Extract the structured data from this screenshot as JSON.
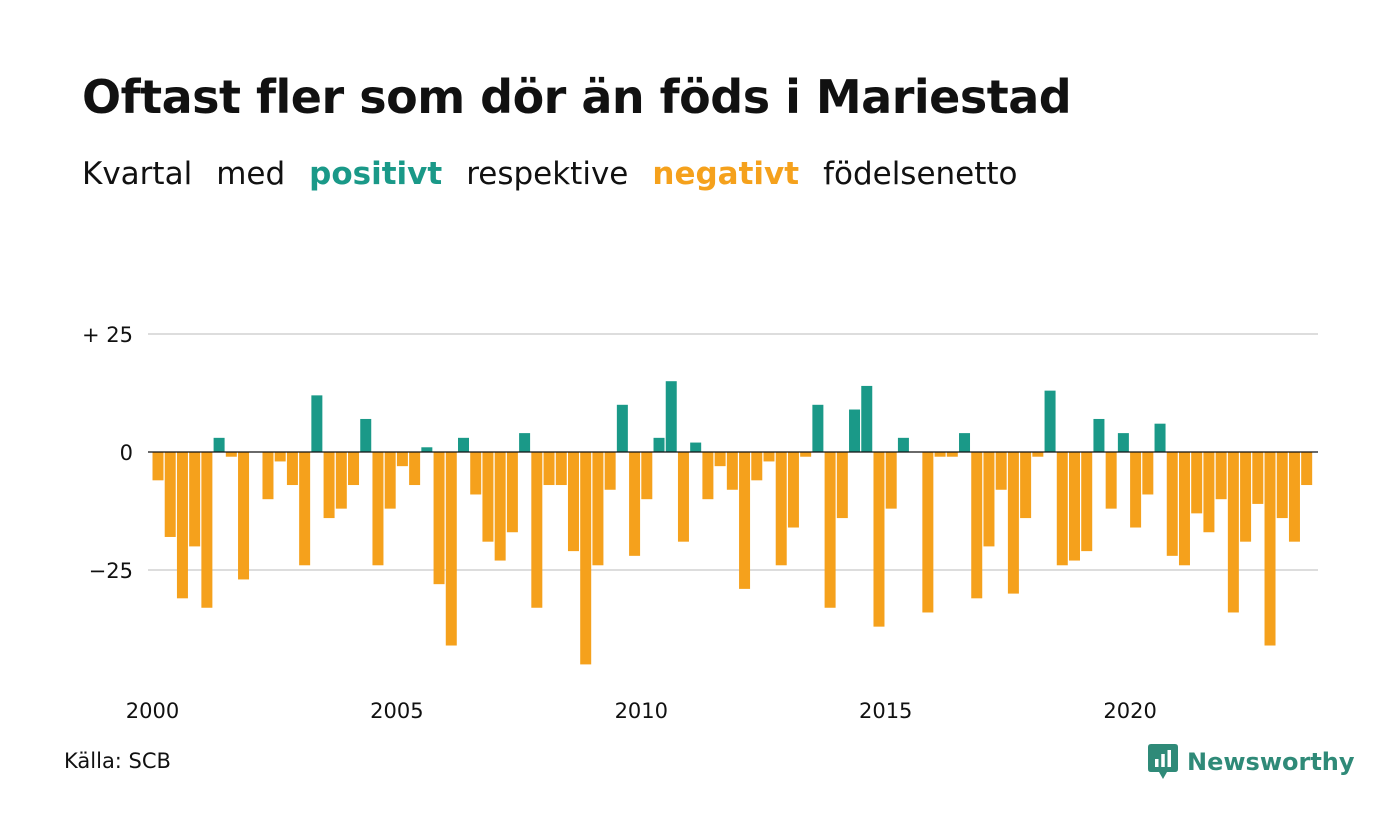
{
  "title": "Oftast fler som dör än föds i Mariestad",
  "subtitle": {
    "prefix": "Kvartal",
    "word2": "med",
    "positive": "positivt",
    "middle": "respektive",
    "negative": "negativt",
    "suffix": "födelsenetto"
  },
  "source": "Källa: SCB",
  "brand": "Newsworthy",
  "colors": {
    "positive": "#1a9988",
    "negative": "#f5a11c",
    "grid": "#dddddd",
    "zero_line": "#111111",
    "logo": "#2f8a78"
  },
  "chart_data": {
    "type": "bar",
    "title": "Oftast fler som dör än föds i Mariestad",
    "subtitle": "Kvartal med positivt respektive negativt födelsenetto",
    "xlabel": "",
    "ylabel": "",
    "ylim": [
      -45,
      30
    ],
    "y_ticks": [
      {
        "value": 25,
        "label": "+ 25"
      },
      {
        "value": 0,
        "label": "0"
      },
      {
        "value": -25,
        "label": "−25"
      }
    ],
    "x_ticks": [
      {
        "value": 2000,
        "label": "2000"
      },
      {
        "value": 2005,
        "label": "2005"
      },
      {
        "value": 2010,
        "label": "2010"
      },
      {
        "value": 2015,
        "label": "2015"
      },
      {
        "value": 2020,
        "label": "2020"
      }
    ],
    "grid": true,
    "start_year": 2000,
    "start_quarter": 1,
    "values": [
      -6,
      -18,
      -31,
      -20,
      -33,
      3,
      -1,
      -27,
      0,
      -10,
      -2,
      -7,
      -24,
      12,
      -14,
      -12,
      -7,
      7,
      -24,
      -12,
      -3,
      -7,
      1,
      -28,
      -41,
      3,
      -9,
      -19,
      -23,
      -17,
      4,
      -33,
      -7,
      -7,
      -21,
      -45,
      -24,
      -8,
      10,
      -22,
      -10,
      3,
      15,
      -19,
      2,
      -10,
      -3,
      -8,
      -29,
      -6,
      -2,
      -24,
      -16,
      -1,
      10,
      -33,
      -14,
      9,
      14,
      -37,
      -12,
      3,
      0,
      -34,
      -1,
      -1,
      4,
      -31,
      -20,
      -8,
      -30,
      -14,
      -1,
      13,
      -24,
      -23,
      -21,
      7,
      -12,
      4,
      -16,
      -9,
      6,
      -22,
      -24,
      -13,
      -17,
      -10,
      -34,
      -19,
      -11,
      -41,
      -14,
      -19,
      -7
    ]
  }
}
